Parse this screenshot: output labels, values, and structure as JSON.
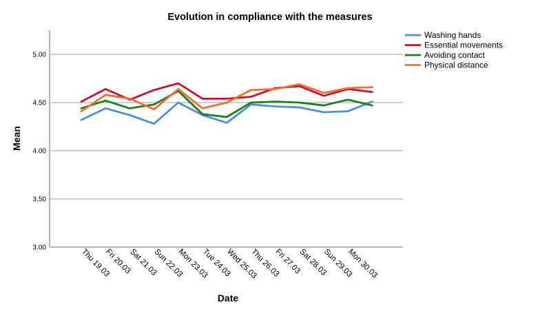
{
  "chart_data": {
    "type": "line",
    "title": "Evolution in compliance with the measures",
    "xlabel": "Date",
    "ylabel": "Mean",
    "ylim": [
      3.0,
      5.25
    ],
    "yticks": [
      "3.00",
      "3.50",
      "4.00",
      "4.50",
      "5.00"
    ],
    "grid": true,
    "legend_position": "top-right",
    "categories": [
      "Thu 19.03",
      "Fri 20.03",
      "Sat 21.03",
      "Sun 22.03",
      "Mon 23.03",
      "Tue 24.03",
      "Wed 25.03",
      "Thu 26.03",
      "Fri 27.03",
      "Sat 28.03",
      "Sun 29.03",
      "Mon 30.03",
      ""
    ],
    "series": [
      {
        "name": "Washing hands",
        "color": "#4a90d9",
        "values": [
          4.32,
          4.44,
          4.37,
          4.28,
          4.5,
          4.37,
          4.29,
          4.48,
          4.46,
          4.45,
          4.4,
          4.41,
          4.51
        ]
      },
      {
        "name": "Essential movements",
        "color": "#c8102e",
        "values": [
          4.51,
          4.64,
          4.53,
          4.63,
          4.7,
          4.54,
          4.54,
          4.56,
          4.65,
          4.67,
          4.57,
          4.64,
          4.61
        ]
      },
      {
        "name": "Avoiding contact",
        "color": "#1e7d1e",
        "values": [
          4.44,
          4.52,
          4.44,
          4.48,
          4.62,
          4.38,
          4.35,
          4.5,
          4.51,
          4.5,
          4.47,
          4.53,
          4.47
        ]
      },
      {
        "name": "Physical distance",
        "color": "#f07030",
        "values": [
          4.41,
          4.58,
          4.54,
          4.43,
          4.64,
          4.44,
          4.5,
          4.63,
          4.64,
          4.69,
          4.6,
          4.65,
          4.66
        ]
      }
    ]
  }
}
